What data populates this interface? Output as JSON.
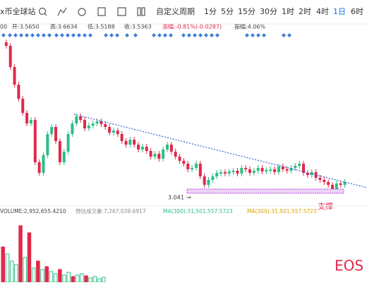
{
  "toolbar": {
    "symbol": "x币全球站",
    "items": [
      "自定义周期",
      "1分",
      "5分",
      "15分",
      "30分",
      "1时",
      "2时",
      "4时",
      "1日",
      "6时"
    ]
  },
  "info": {
    "prefix": "00",
    "open": "开:3.5650",
    "high": "高:3.6634",
    "low": "低:3.5188",
    "close": "收:3.5363",
    "change": "涨幅:-0.81%(-0.0287)",
    "amplitude": "振幅:4.06%"
  },
  "chart": {
    "price_marker": "3.041",
    "support_label": "支撑"
  },
  "volume": {
    "volume": "VOLUME:2,952,655.4210",
    "forecast": "预估成交量:7,267,039.6917",
    "ma1": "MA(300):31,501,557.5723",
    "ma2": "MA(300):31,501,557.5723"
  },
  "watermark": "EOS"
}
